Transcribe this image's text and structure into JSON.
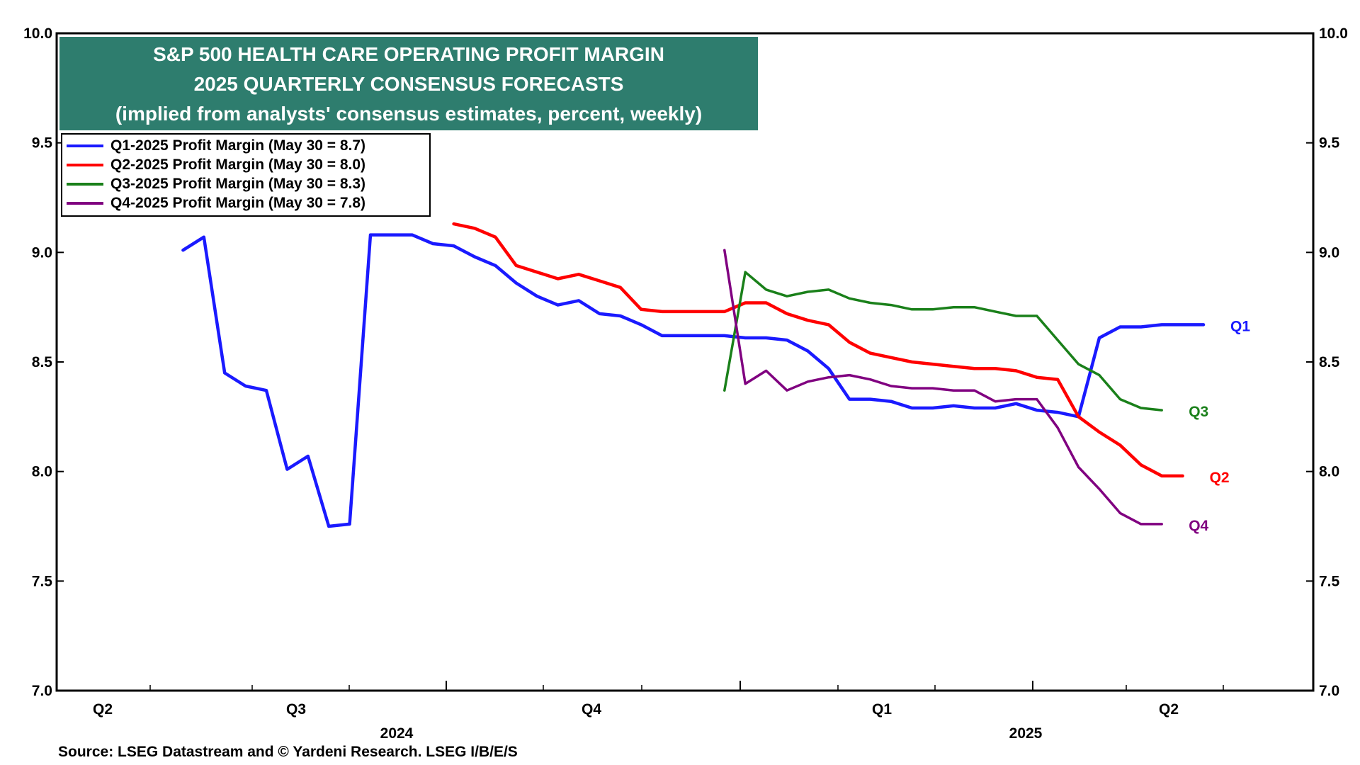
{
  "title": {
    "line1": "S&P 500 HEALTH CARE OPERATING PROFIT MARGIN",
    "line2": "2025 QUARTERLY CONSENSUS FORECASTS",
    "line3": "(implied from analysts' consensus estimates, percent, weekly)"
  },
  "legend": [
    {
      "label": "Q1-2025 Profit Margin (May 30 = 8.7)",
      "color": "#1a1aff"
    },
    {
      "label": "Q2-2025 Profit Margin (May 30 = 8.0)",
      "color": "#ff0000"
    },
    {
      "label": "Q3-2025 Profit Margin (May 30 = 8.3)",
      "color": "#1a801a"
    },
    {
      "label": "Q4-2025 Profit Margin (May 30 = 7.8)",
      "color": "#800080"
    }
  ],
  "source": "Source: LSEG Datastream and © Yardeni Research. LSEG I/B/E/S",
  "chart_data": {
    "type": "line",
    "ylim": [
      7.0,
      10.0
    ],
    "yticks": [
      "10.0",
      "9.5",
      "9.0",
      "8.5",
      "8.0",
      "7.5",
      "7.0"
    ],
    "x_quarter_labels": [
      "Q2",
      "Q3",
      "Q4",
      "Q1",
      "Q2"
    ],
    "x_year_labels": [
      "2024",
      "2025"
    ],
    "series": [
      {
        "name": "Q1",
        "end_label": "Q1",
        "color": "#1a1aff",
        "start_week": 6,
        "values": [
          9.01,
          9.07,
          8.45,
          8.39,
          8.37,
          8.01,
          8.07,
          7.75,
          7.76,
          9.08,
          9.08,
          9.08,
          9.04,
          9.03,
          8.98,
          8.94,
          8.86,
          8.8,
          8.76,
          8.78,
          8.72,
          8.71,
          8.67,
          8.62,
          8.62,
          8.62,
          8.62,
          8.61,
          8.61,
          8.6,
          8.55,
          8.47,
          8.33,
          8.33,
          8.32,
          8.29,
          8.29,
          8.3,
          8.29,
          8.29,
          8.31,
          8.28,
          8.27,
          8.25,
          8.61,
          8.66,
          8.66,
          8.67,
          8.67,
          8.67
        ]
      },
      {
        "name": "Q2",
        "end_label": "Q2",
        "color": "#ff0000",
        "start_week": 19,
        "values": [
          9.13,
          9.11,
          9.07,
          8.94,
          8.91,
          8.88,
          8.9,
          8.87,
          8.84,
          8.74,
          8.73,
          8.73,
          8.73,
          8.73,
          8.77,
          8.77,
          8.72,
          8.69,
          8.67,
          8.59,
          8.54,
          8.52,
          8.5,
          8.49,
          8.48,
          8.47,
          8.47,
          8.46,
          8.43,
          8.42,
          8.25,
          8.18,
          8.12,
          8.03,
          7.98,
          7.98
        ]
      },
      {
        "name": "Q3",
        "end_label": "Q3",
        "color": "#1a801a",
        "start_week": 32,
        "values": [
          8.37,
          8.91,
          8.83,
          8.8,
          8.82,
          8.83,
          8.79,
          8.77,
          8.76,
          8.74,
          8.74,
          8.75,
          8.75,
          8.73,
          8.71,
          8.71,
          8.6,
          8.49,
          8.44,
          8.33,
          8.29,
          8.28
        ]
      },
      {
        "name": "Q4",
        "end_label": "Q4",
        "color": "#800080",
        "start_week": 32,
        "values": [
          9.01,
          8.4,
          8.46,
          8.37,
          8.41,
          8.43,
          8.44,
          8.42,
          8.39,
          8.38,
          8.38,
          8.37,
          8.37,
          8.32,
          8.33,
          8.33,
          8.2,
          8.02,
          7.92,
          7.81,
          7.76,
          7.76
        ]
      }
    ]
  }
}
